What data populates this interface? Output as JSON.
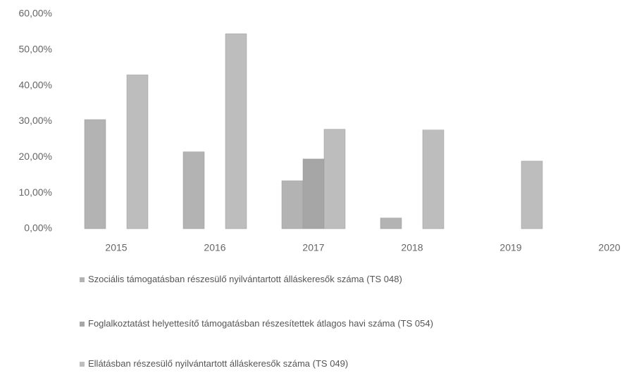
{
  "chart_data": {
    "type": "bar",
    "categories": [
      "2015",
      "2016",
      "2017",
      "2018",
      "2019",
      "2020"
    ],
    "series": [
      {
        "name": "Szociális támogatásban részesülő nyilvántartott álláskeresők száma (TS 048)",
        "color": "#b3b3b3",
        "values": [
          30.5,
          21.5,
          13.4,
          3,
          null,
          null
        ]
      },
      {
        "name": "Foglalkoztatást helyettesítő támogatásban részesítettek átlagos havi száma (TS 054)",
        "color": "#a6a6a6",
        "values": [
          null,
          null,
          19.5,
          null,
          null,
          null
        ]
      },
      {
        "name": "Ellátásban részesülő nyilvántartott álláskeresők száma (TS 049)",
        "color": "#bdbdbd",
        "values": [
          43,
          54.5,
          27.8,
          27.6,
          18.9,
          null
        ]
      }
    ],
    "ylim": [
      0,
      60
    ],
    "yticks": [
      {
        "value": 0,
        "label": "0,00%"
      },
      {
        "value": 10,
        "label": "10,00%"
      },
      {
        "value": 20,
        "label": "20,00%"
      },
      {
        "value": 30,
        "label": "30,00%"
      },
      {
        "value": 40,
        "label": "40,00%"
      },
      {
        "value": 50,
        "label": "50,00%"
      },
      {
        "value": 60,
        "label": "60,00%"
      }
    ],
    "grid": false
  }
}
